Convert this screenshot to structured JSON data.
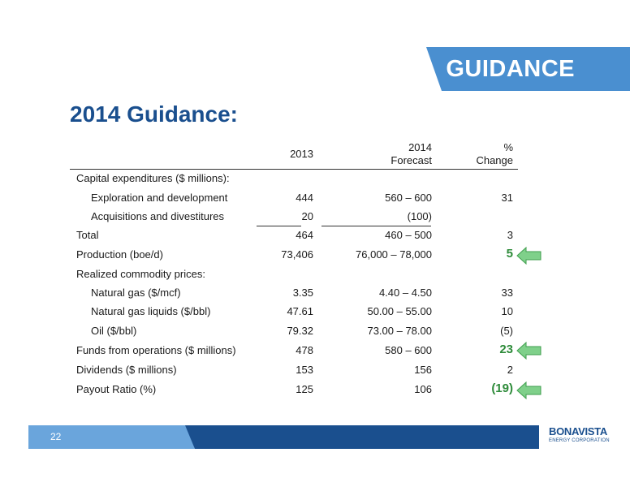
{
  "banner": {
    "label": "GUIDANCE"
  },
  "title": "2014 Guidance:",
  "table": {
    "headers": {
      "col2013": "2013",
      "col2014_line1": "2014",
      "col2014_line2": "Forecast",
      "change_line1": "%",
      "change_line2": "Change"
    },
    "rows": [
      {
        "label": "Capital expenditures ($ millions):",
        "v2013": "",
        "v2014": "",
        "change": ""
      },
      {
        "label": "Exploration and development",
        "v2013": "444",
        "v2014": "560 – 600",
        "change": "31"
      },
      {
        "label": "Acquisitions and divestitures",
        "v2013": "20",
        "v2014": "(100)",
        "change": ""
      },
      {
        "label": "Total",
        "v2013": "464",
        "v2014": "460 – 500",
        "change": "3"
      },
      {
        "label": "Production (boe/d)",
        "v2013": "73,406",
        "v2014": "76,000 – 78,000",
        "change": "5"
      },
      {
        "label": "Realized commodity prices:",
        "v2013": "",
        "v2014": "",
        "change": ""
      },
      {
        "label": "Natural gas ($/mcf)",
        "v2013": "3.35",
        "v2014": "4.40 – 4.50",
        "change": "33"
      },
      {
        "label": "Natural gas liquids ($/bbl)",
        "v2013": "47.61",
        "v2014": "50.00 – 55.00",
        "change": "10"
      },
      {
        "label": "Oil ($/bbl)",
        "v2013": "79.32",
        "v2014": "73.00 – 78.00",
        "change": "(5)"
      },
      {
        "label": "Funds from operations ($ millions)",
        "v2013": "478",
        "v2014": "580 – 600",
        "change": "23"
      },
      {
        "label": "Dividends ($ millions)",
        "v2013": "153",
        "v2014": "156",
        "change": "2"
      },
      {
        "label": "Payout Ratio (%)",
        "v2013": "125",
        "v2014": "106",
        "change": "(19)"
      }
    ]
  },
  "footer": {
    "page_number": "22"
  },
  "logo": {
    "name": "BONAVISTA",
    "subtitle": "ENERGY CORPORATION"
  },
  "colors": {
    "accent": "#4a8fd0",
    "navy": "#1a4f8e",
    "highlight": "#2e8b3a",
    "arrow": "#7fd08a"
  }
}
